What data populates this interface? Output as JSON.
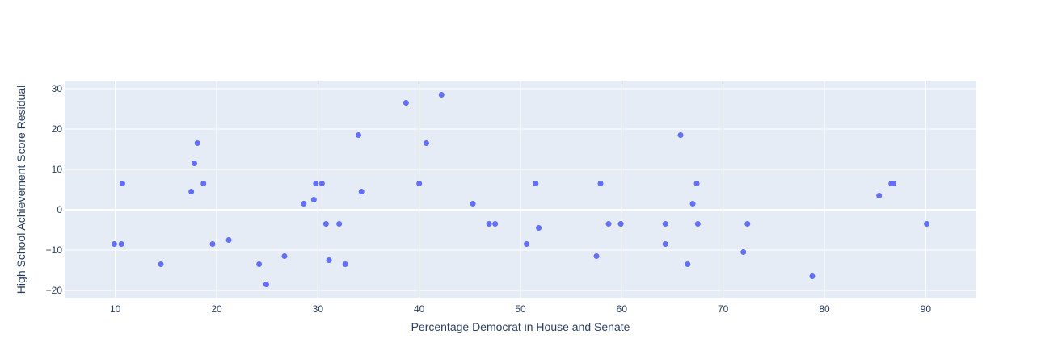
{
  "chart_data": {
    "type": "scatter",
    "xlabel": "Percentage Democrat in House and Senate",
    "ylabel": "High School Achievement Score Residual",
    "xlim": [
      5,
      95
    ],
    "ylim": [
      -22,
      32
    ],
    "x_ticks": [
      10,
      20,
      30,
      40,
      50,
      60,
      70,
      80,
      90
    ],
    "y_ticks": [
      -20,
      -10,
      0,
      10,
      20,
      30
    ],
    "grid": true,
    "colors": {
      "plot_background": "#e5ecf6",
      "grid": "#ffffff",
      "marker": "#636efa",
      "text": "#2a3f5f"
    },
    "series": [
      {
        "points": [
          {
            "x": 9.9,
            "y": -8.5
          },
          {
            "x": 10.6,
            "y": -8.5
          },
          {
            "x": 10.7,
            "y": 6.5
          },
          {
            "x": 14.5,
            "y": -13.5
          },
          {
            "x": 17.5,
            "y": 4.5
          },
          {
            "x": 17.8,
            "y": 11.5
          },
          {
            "x": 18.1,
            "y": 16.5
          },
          {
            "x": 18.7,
            "y": 6.5
          },
          {
            "x": 19.6,
            "y": -8.5
          },
          {
            "x": 21.2,
            "y": -7.5
          },
          {
            "x": 24.2,
            "y": -13.5
          },
          {
            "x": 24.9,
            "y": -18.5
          },
          {
            "x": 26.7,
            "y": -11.5
          },
          {
            "x": 28.6,
            "y": 1.5
          },
          {
            "x": 29.6,
            "y": 2.5
          },
          {
            "x": 29.8,
            "y": 6.5
          },
          {
            "x": 30.4,
            "y": 6.5
          },
          {
            "x": 30.8,
            "y": -3.5
          },
          {
            "x": 31.1,
            "y": -12.5
          },
          {
            "x": 32.1,
            "y": -3.5
          },
          {
            "x": 32.7,
            "y": -13.5
          },
          {
            "x": 34.0,
            "y": 18.5
          },
          {
            "x": 34.3,
            "y": 4.5
          },
          {
            "x": 38.7,
            "y": 26.5
          },
          {
            "x": 40.0,
            "y": 6.5
          },
          {
            "x": 40.7,
            "y": 16.5
          },
          {
            "x": 42.2,
            "y": 28.5
          },
          {
            "x": 45.3,
            "y": 1.5
          },
          {
            "x": 46.9,
            "y": -3.5
          },
          {
            "x": 47.5,
            "y": -3.5
          },
          {
            "x": 50.6,
            "y": -8.5
          },
          {
            "x": 51.5,
            "y": 6.5
          },
          {
            "x": 51.8,
            "y": -4.5
          },
          {
            "x": 57.5,
            "y": -11.5
          },
          {
            "x": 57.9,
            "y": 6.5
          },
          {
            "x": 58.7,
            "y": -3.5
          },
          {
            "x": 59.9,
            "y": -3.5
          },
          {
            "x": 64.3,
            "y": -3.5
          },
          {
            "x": 64.3,
            "y": -8.5
          },
          {
            "x": 65.8,
            "y": 18.5
          },
          {
            "x": 66.5,
            "y": -13.5
          },
          {
            "x": 67.0,
            "y": 1.5
          },
          {
            "x": 67.4,
            "y": 6.5
          },
          {
            "x": 67.5,
            "y": -3.5
          },
          {
            "x": 72.0,
            "y": -10.5
          },
          {
            "x": 72.4,
            "y": -3.5
          },
          {
            "x": 78.8,
            "y": -16.5
          },
          {
            "x": 85.4,
            "y": 3.5
          },
          {
            "x": 86.6,
            "y": 6.5
          },
          {
            "x": 86.8,
            "y": 6.5
          },
          {
            "x": 90.1,
            "y": -3.5
          }
        ]
      }
    ]
  }
}
